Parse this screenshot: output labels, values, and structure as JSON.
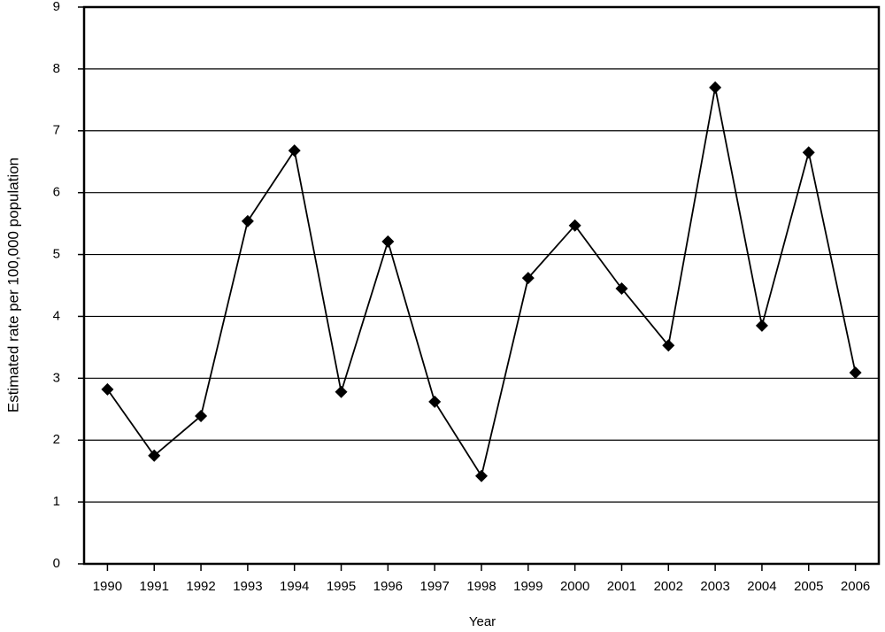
{
  "chart_data": {
    "type": "line",
    "x_label": "Year",
    "y_label": "Estimated rate per 100,000 population",
    "categories": [
      "1990",
      "1991",
      "1992",
      "1993",
      "1994",
      "1995",
      "1996",
      "1997",
      "1998",
      "1999",
      "2000",
      "2001",
      "2002",
      "2003",
      "2004",
      "2005",
      "2006"
    ],
    "series": [
      {
        "name": "Estimated rate",
        "color": "#000000",
        "values": [
          2.82,
          1.75,
          2.39,
          5.54,
          6.68,
          2.78,
          5.21,
          2.62,
          1.42,
          4.62,
          5.47,
          4.45,
          3.53,
          7.7,
          3.85,
          6.65,
          3.09
        ]
      }
    ],
    "ylim": [
      0,
      9
    ],
    "yticks": [
      0,
      1,
      2,
      3,
      4,
      5,
      6,
      7,
      8,
      9
    ],
    "grid": true
  }
}
